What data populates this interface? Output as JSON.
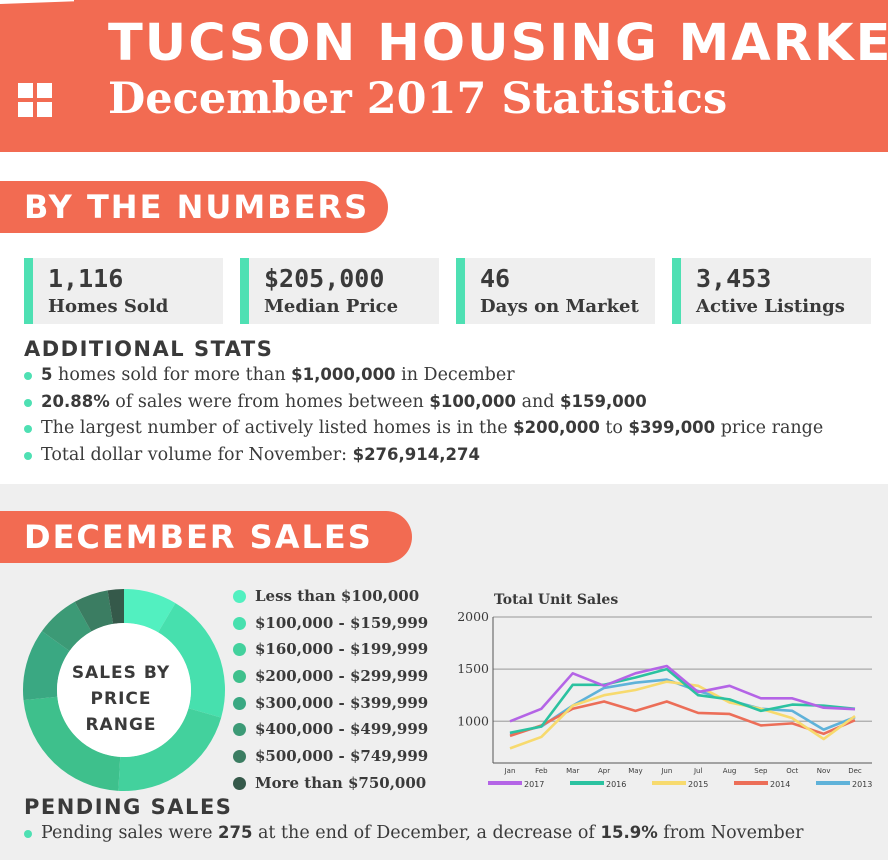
{
  "header": {
    "title": "TUCSON HOUSING MARKET",
    "subtitle": "December 2017 Statistics"
  },
  "colors": {
    "accent": "#f26b52",
    "mint": "#4ee0b3",
    "text": "#3a3a3a",
    "panel": "#efefef"
  },
  "by_numbers": {
    "heading": "BY THE NUMBERS",
    "stats": [
      {
        "value": "1,116",
        "label": "Homes Sold"
      },
      {
        "value": "$205,000",
        "label": "Median Price"
      },
      {
        "value": "46",
        "label": "Days on Market"
      },
      {
        "value": "3,453",
        "label": "Active Listings"
      }
    ]
  },
  "additional": {
    "heading": "ADDITIONAL STATS",
    "items": [
      {
        "b1": "5",
        "t1": " homes sold for more than ",
        "b2": "$1,000,000",
        "t2": " in December",
        "b3": "",
        "t3": ""
      },
      {
        "b1": "20.88%",
        "t1": " of sales were from homes between ",
        "b2": "$100,000",
        "t2": " and ",
        "b3": "$159,000",
        "t3": ""
      },
      {
        "b1": "",
        "t1": "The largest number of actively listed homes is in the ",
        "b2": "$200,000",
        "t2": " to ",
        "b3": "$399,000",
        "t3": " price range"
      },
      {
        "b1": "",
        "t1": "Total dollar volume for November: ",
        "b2": "$276,914,274",
        "t2": "",
        "b3": "",
        "t3": ""
      }
    ]
  },
  "december_sales": {
    "heading": "DECEMBER SALES",
    "donut_label_line1": "SALES BY",
    "donut_label_line2": "PRICE RANGE"
  },
  "pending": {
    "heading": "PENDING SALES",
    "items": [
      {
        "b1": "",
        "t1": "Pending sales were ",
        "b2": "275",
        "t2": " at the end of December, a decrease of ",
        "b3": "15.9%",
        "t3": " from November"
      }
    ]
  },
  "chart_data": [
    {
      "type": "pie",
      "variant": "donut",
      "title": "",
      "legend_position": "right",
      "categories": [
        "Less than $100,000",
        "$100,000 - $159,999",
        "$160,000 - $199,999",
        "$200,000 - $299,999",
        "$300,000 - $399,999",
        "$400,000 - $499,999",
        "$500,000 - $749,999",
        "More than $750,000"
      ],
      "values": [
        8.5,
        20.9,
        21.5,
        22.5,
        11.5,
        7.0,
        5.5,
        2.6
      ],
      "colors": [
        "#52f0c0",
        "#47e0ae",
        "#43d19d",
        "#3ec08c",
        "#3aa882",
        "#3c9a76",
        "#3b7d62",
        "#35594a"
      ]
    },
    {
      "type": "line",
      "title": "Total Unit Sales",
      "xlabel": "",
      "ylabel": "",
      "categories": [
        "Jan",
        "Feb",
        "Mar",
        "Apr",
        "May",
        "Jun",
        "Jul",
        "Aug",
        "Sep",
        "Oct",
        "Nov",
        "Dec"
      ],
      "ylim": [
        600,
        2000
      ],
      "yticks": [
        1000,
        1500,
        2000
      ],
      "grid": true,
      "legend_position": "bottom",
      "series": [
        {
          "name": "2017",
          "color": "#b464e6",
          "values": [
            1000,
            1120,
            1460,
            1340,
            1460,
            1530,
            1280,
            1340,
            1220,
            1220,
            1130,
            1116
          ]
        },
        {
          "name": "2016",
          "color": "#2bc2a0",
          "values": [
            890,
            950,
            1350,
            1350,
            1420,
            1500,
            1250,
            1210,
            1100,
            1160,
            1150,
            1120
          ]
        },
        {
          "name": "2015",
          "color": "#f7da6e",
          "values": [
            740,
            850,
            1150,
            1250,
            1300,
            1380,
            1340,
            1180,
            1120,
            1030,
            830,
            1050
          ]
        },
        {
          "name": "2014",
          "color": "#ec6e58",
          "values": [
            860,
            960,
            1120,
            1190,
            1100,
            1190,
            1080,
            1070,
            960,
            980,
            880,
            1010
          ]
        },
        {
          "name": "2013",
          "color": "#5fb2d9",
          "values": [
            880,
            950,
            1150,
            1320,
            1370,
            1400,
            1290,
            1200,
            1120,
            1100,
            920,
            1040
          ]
        }
      ]
    }
  ]
}
